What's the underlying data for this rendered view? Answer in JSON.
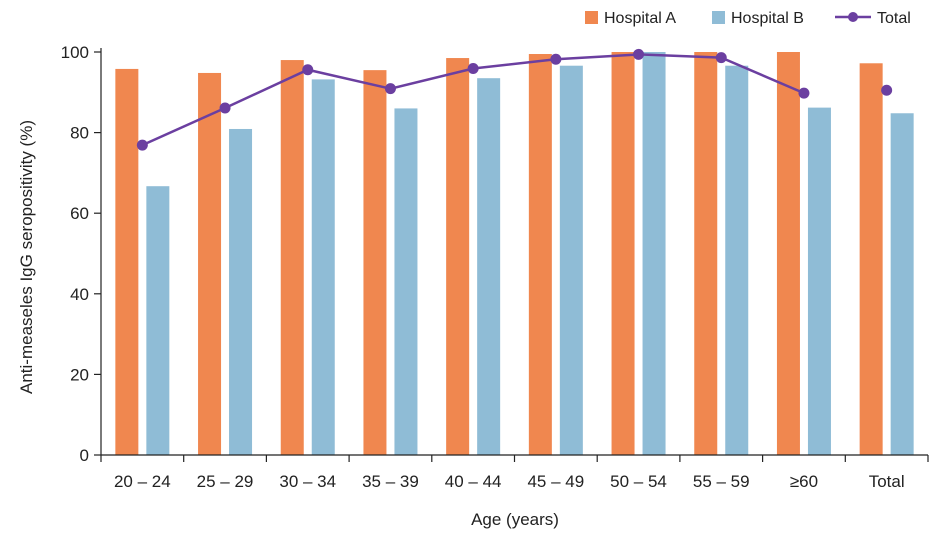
{
  "chart_data": {
    "type": "bar",
    "xlabel": "Age (years)",
    "ylabel": "Anti-measeles IgG seropositivity (%)",
    "categories": [
      "20 – 24",
      "25 – 29",
      "30 – 34",
      "35 – 39",
      "40 – 44",
      "45 – 49",
      "50 – 54",
      "55 – 59",
      "≥60",
      "Total"
    ],
    "series": [
      {
        "name": "Hospital A",
        "kind": "bar",
        "color": "#f0874f",
        "values": [
          95.8,
          94.8,
          98.0,
          95.5,
          98.5,
          99.5,
          100.0,
          100.0,
          100.0,
          97.2
        ]
      },
      {
        "name": "Hospital B",
        "kind": "bar",
        "color": "#8fbcd6",
        "values": [
          66.7,
          80.9,
          93.2,
          86.0,
          93.5,
          96.6,
          100.0,
          96.6,
          86.2,
          84.8
        ]
      },
      {
        "name": "Total",
        "kind": "line",
        "color": "#6b3fa0",
        "values": [
          76.9,
          86.1,
          95.6,
          90.9,
          95.9,
          98.2,
          99.4,
          98.6,
          89.8,
          90.5
        ],
        "line_excludes_last": true
      }
    ],
    "ylim": [
      0,
      100
    ],
    "yticks": [
      0,
      20,
      40,
      60,
      80,
      100
    ],
    "grid": false,
    "legend": "top-right"
  }
}
